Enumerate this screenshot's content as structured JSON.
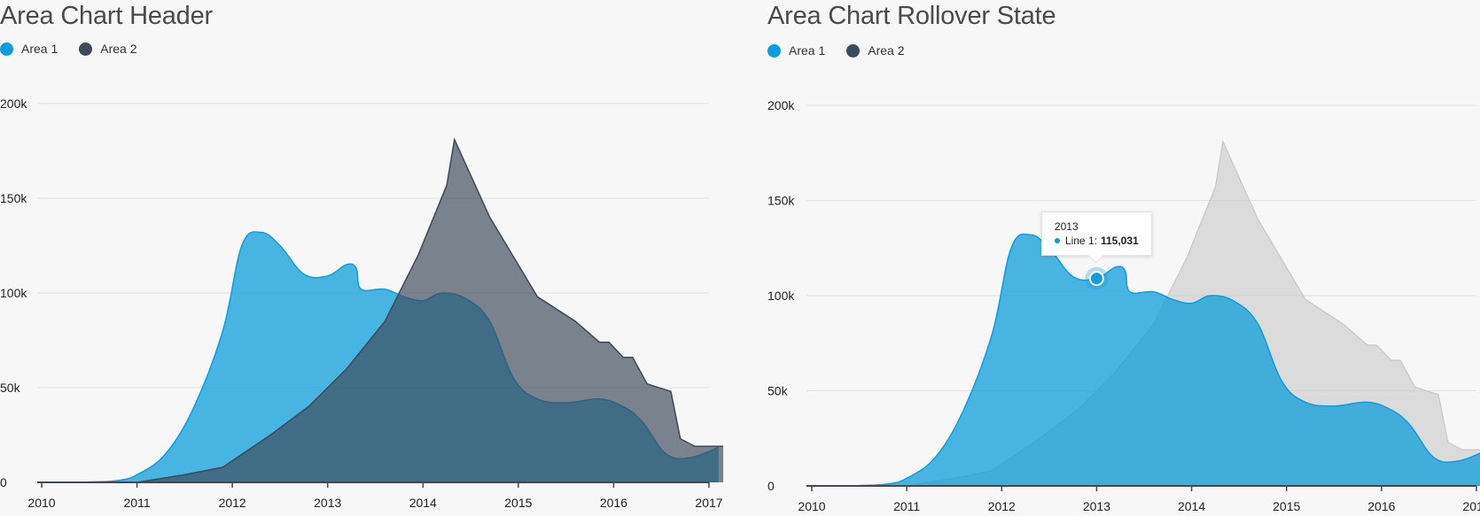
{
  "colors": {
    "area1": "#0d9ddb",
    "area2": "#3c4a5a",
    "area2_inactive": "#c8c8c8",
    "grid": "#e2e2e2",
    "axis": "#3c4a5a"
  },
  "chart_data": [
    {
      "type": "area",
      "title": "Area Chart Header",
      "legend": [
        "Area 1",
        "Area 2"
      ],
      "x": [
        "2010",
        "2011",
        "2012",
        "2013",
        "2014",
        "2015",
        "2016",
        "2017"
      ],
      "ylim": [
        0,
        200000
      ],
      "y_ticks": [
        "0",
        "50k",
        "100k",
        "150k",
        "200k"
      ],
      "grid": true,
      "legend_position": "top-left",
      "series": [
        {
          "name": "Area 1",
          "points": [
            [
              2010,
              0
            ],
            [
              2010.5,
              200
            ],
            [
              2010.8,
              1000
            ],
            [
              2011,
              4000
            ],
            [
              2011.3,
              15000
            ],
            [
              2011.6,
              40000
            ],
            [
              2011.9,
              80000
            ],
            [
              2012.1,
              125000
            ],
            [
              2012.3,
              132000
            ],
            [
              2012.5,
              125000
            ],
            [
              2012.75,
              110000
            ],
            [
              2013,
              109000
            ],
            [
              2013.2,
              115000
            ],
            [
              2013.3,
              113000
            ],
            [
              2013.35,
              102000
            ],
            [
              2013.6,
              102000
            ],
            [
              2013.8,
              98000
            ],
            [
              2014,
              96000
            ],
            [
              2014.2,
              100000
            ],
            [
              2014.45,
              97000
            ],
            [
              2014.7,
              85000
            ],
            [
              2014.95,
              55000
            ],
            [
              2015.2,
              44000
            ],
            [
              2015.5,
              42000
            ],
            [
              2015.85,
              44000
            ],
            [
              2016.1,
              40000
            ],
            [
              2016.3,
              32000
            ],
            [
              2016.55,
              15000
            ],
            [
              2016.8,
              13000
            ],
            [
              2017.1,
              18500
            ]
          ]
        },
        {
          "name": "Area 2",
          "points": [
            [
              2010,
              0
            ],
            [
              2011,
              0
            ],
            [
              2011.5,
              4000
            ],
            [
              2011.9,
              8000
            ],
            [
              2012.4,
              25000
            ],
            [
              2012.8,
              40000
            ],
            [
              2013.2,
              60000
            ],
            [
              2013.6,
              85000
            ],
            [
              2013.95,
              120000
            ],
            [
              2014.25,
              157000
            ],
            [
              2014.33,
              181000
            ],
            [
              2014.7,
              140000
            ],
            [
              2015.2,
              98000
            ],
            [
              2015.6,
              85000
            ],
            [
              2015.85,
              74000
            ],
            [
              2015.95,
              74000
            ],
            [
              2016.1,
              66000
            ],
            [
              2016.2,
              66000
            ],
            [
              2016.35,
              52000
            ],
            [
              2016.6,
              48000
            ],
            [
              2016.7,
              23000
            ],
            [
              2016.85,
              19000
            ],
            [
              2017.15,
              19000
            ]
          ]
        }
      ]
    },
    {
      "type": "area",
      "title": "Area Chart Rollover State",
      "legend": [
        "Area 1",
        "Area 2"
      ],
      "x": [
        "2010",
        "2011",
        "2012",
        "2013",
        "2014",
        "2015",
        "2016",
        "2017"
      ],
      "ylim": [
        0,
        200000
      ],
      "y_ticks": [
        "0",
        "50k",
        "100k",
        "150k",
        "200k"
      ],
      "grid": true,
      "legend_position": "top-left",
      "highlighted_series": "Area 1",
      "tooltip": {
        "title": "2013",
        "label": "Line 1:",
        "value": "115,031",
        "x": 2013
      },
      "series": [
        {
          "name": "Area 1",
          "points": [
            [
              2010,
              0
            ],
            [
              2010.5,
              200
            ],
            [
              2010.8,
              1000
            ],
            [
              2011,
              4000
            ],
            [
              2011.3,
              15000
            ],
            [
              2011.6,
              40000
            ],
            [
              2011.9,
              80000
            ],
            [
              2012.1,
              125000
            ],
            [
              2012.3,
              132000
            ],
            [
              2012.5,
              125000
            ],
            [
              2012.75,
              110000
            ],
            [
              2013,
              109000
            ],
            [
              2013.2,
              115000
            ],
            [
              2013.3,
              113000
            ],
            [
              2013.35,
              102000
            ],
            [
              2013.6,
              102000
            ],
            [
              2013.8,
              98000
            ],
            [
              2014,
              96000
            ],
            [
              2014.2,
              100000
            ],
            [
              2014.45,
              97000
            ],
            [
              2014.7,
              85000
            ],
            [
              2014.95,
              55000
            ],
            [
              2015.2,
              44000
            ],
            [
              2015.5,
              42000
            ],
            [
              2015.85,
              44000
            ],
            [
              2016.1,
              40000
            ],
            [
              2016.3,
              32000
            ],
            [
              2016.55,
              15000
            ],
            [
              2016.8,
              13000
            ],
            [
              2017.1,
              18500
            ]
          ]
        },
        {
          "name": "Area 2",
          "points": [
            [
              2010,
              0
            ],
            [
              2011,
              0
            ],
            [
              2011.5,
              4000
            ],
            [
              2011.9,
              8000
            ],
            [
              2012.4,
              25000
            ],
            [
              2012.8,
              40000
            ],
            [
              2013.2,
              60000
            ],
            [
              2013.6,
              85000
            ],
            [
              2013.95,
              120000
            ],
            [
              2014.25,
              157000
            ],
            [
              2014.33,
              181000
            ],
            [
              2014.7,
              140000
            ],
            [
              2015.2,
              98000
            ],
            [
              2015.6,
              85000
            ],
            [
              2015.85,
              74000
            ],
            [
              2015.95,
              74000
            ],
            [
              2016.1,
              66000
            ],
            [
              2016.2,
              66000
            ],
            [
              2016.35,
              52000
            ],
            [
              2016.6,
              48000
            ],
            [
              2016.7,
              23000
            ],
            [
              2016.85,
              19000
            ],
            [
              2017.15,
              19000
            ]
          ]
        }
      ]
    }
  ]
}
